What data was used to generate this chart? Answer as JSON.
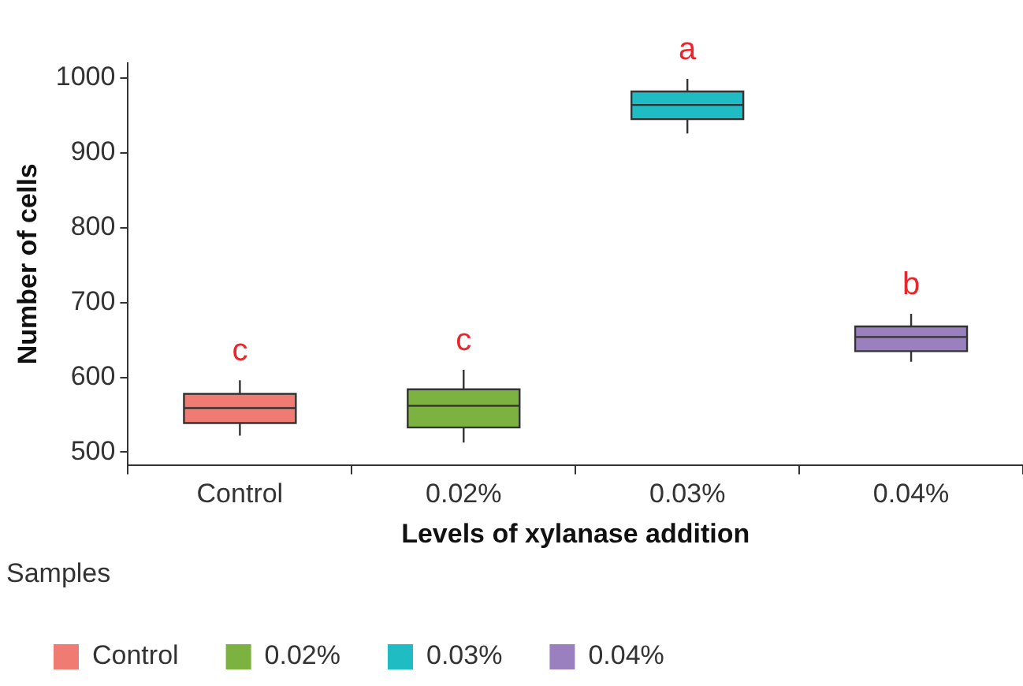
{
  "chart_data": {
    "type": "box",
    "xlabel": "Levels of xylanase addition",
    "ylabel": "Number of cells",
    "legend_title": "Samples",
    "legend": "bottom",
    "grid": false,
    "categories": [
      "Control",
      "0.02%",
      "0.03%",
      "0.04%"
    ],
    "series": [
      {
        "name": "Control",
        "color": "#f07b72",
        "boxes": [
          {
            "low": 522,
            "q1": 539,
            "median": 559,
            "q3": 578,
            "high": 596
          },
          null,
          null,
          null
        ]
      },
      {
        "name": "0.02%",
        "color": "#7cb23f",
        "boxes": [
          null,
          {
            "low": 513,
            "q1": 533,
            "median": 562,
            "q3": 584,
            "high": 610
          },
          null,
          null
        ]
      },
      {
        "name": "0.03%",
        "color": "#1fbcc4",
        "boxes": [
          null,
          null,
          {
            "low": 926,
            "q1": 945,
            "median": 964,
            "q3": 982,
            "high": 999
          },
          null
        ]
      },
      {
        "name": "0.04%",
        "color": "#9b80bf",
        "boxes": [
          null,
          null,
          null,
          {
            "low": 621,
            "q1": 635,
            "median": 654,
            "q3": 668,
            "high": 685
          }
        ]
      }
    ],
    "ylim": [
      483,
      1020
    ],
    "yticks": [
      500,
      600,
      700,
      800,
      900,
      1000
    ],
    "annotations": [
      {
        "text": "c",
        "x": "Control",
        "y": 596
      },
      {
        "text": "c",
        "x": "0.02%",
        "y": 610
      },
      {
        "text": "a",
        "x": "0.03%",
        "y": 999
      },
      {
        "text": "b",
        "x": "0.04%",
        "y": 685
      }
    ]
  }
}
